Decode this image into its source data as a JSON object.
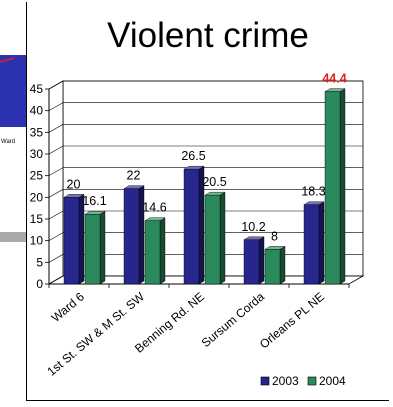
{
  "chart_data": {
    "type": "bar",
    "title": "Violent crime",
    "categories": [
      "Ward 6",
      "1st St. SW & M St. SW",
      "Benning Rd. NE",
      "Sursum Corda",
      "Orleans PL NE"
    ],
    "series": [
      {
        "name": "2003",
        "values": [
          20,
          22,
          26.5,
          10.2,
          18.3
        ],
        "labels": [
          "20",
          "22",
          "26.5",
          "10.2",
          "18.3"
        ]
      },
      {
        "name": "2004",
        "values": [
          16.1,
          14.6,
          20.5,
          8,
          44.4
        ],
        "labels": [
          "16.1",
          "14.6",
          "20.5",
          "8",
          "44.4"
        ]
      }
    ],
    "ylim": [
      0,
      45
    ],
    "yticks": [
      0,
      5,
      10,
      15,
      20,
      25,
      30,
      35,
      40,
      45
    ],
    "grid": true,
    "legend_position": "bottom-right",
    "highlight": {
      "series": 1,
      "index": 4,
      "color": "#e3201b"
    },
    "colors": {
      "2003": "#26268c",
      "2004": "#2a8a5c"
    }
  },
  "background": {
    "partial_label": "Ward"
  }
}
